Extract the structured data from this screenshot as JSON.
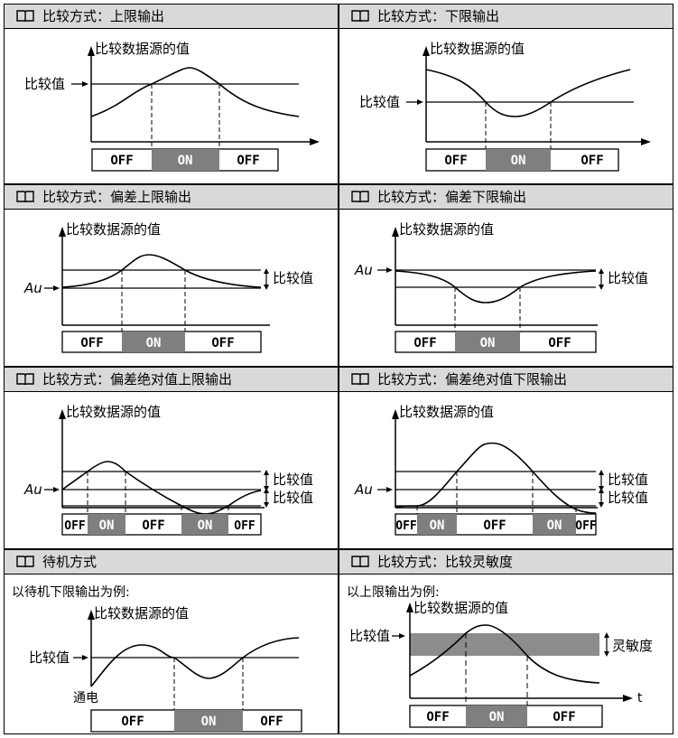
{
  "ylabel": "比较数据源的值",
  "cmp_value": "比较值",
  "au": "Au",
  "box_off": "OFF",
  "box_on": "ON",
  "colors": {
    "on_fill": "#7f7f7f",
    "header_bg": "#d9d9d9",
    "band": "#8c8c8c"
  },
  "panels": [
    {
      "title": "比较方式：上限输出"
    },
    {
      "title": "比较方式：下限输出"
    },
    {
      "title": "比较方式：偏差上限输出"
    },
    {
      "title": "比较方式：偏差下限输出"
    },
    {
      "title": "比较方式：偏差绝对值上限输出"
    },
    {
      "title": "比较方式：偏差绝对值下限输出"
    },
    {
      "title": "待机方式",
      "subtitle": "以待机下限输出为例:",
      "power_on": "通电"
    },
    {
      "title": "比较方式：比较灵敏度",
      "subtitle": "以上限输出为例:",
      "sensitivity": "灵敏度",
      "t_axis": "t"
    }
  ]
}
